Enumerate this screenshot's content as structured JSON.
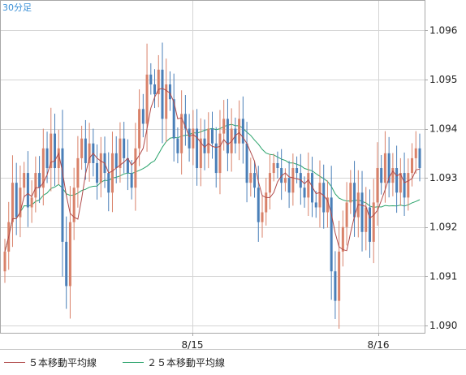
{
  "chart_data": {
    "type": "candlestick",
    "timeframe_label": "30分足",
    "x_tick_labels": [
      "8/15",
      "8/16"
    ],
    "y_ticks": [
      1.09,
      1.091,
      1.092,
      1.093,
      1.094,
      1.095,
      1.096
    ],
    "y_tick_labels": [
      "1.090",
      "1.091",
      "1.092",
      "1.093",
      "1.094",
      "1.095",
      "1.096"
    ],
    "ylim": [
      1.08985,
      1.0966
    ],
    "grid": true,
    "legend": {
      "placement": "bottom-left",
      "items": [
        {
          "label": "５本移動平均線",
          "color": "#b04a4a"
        },
        {
          "label": "２５本移動平均線",
          "color": "#2aa36b"
        }
      ]
    },
    "colors": {
      "up": "#d9826a",
      "down": "#4a7fb8",
      "ma5": "#b04a4a",
      "ma25": "#2aa36b",
      "timeframe": "#3a8fd6"
    },
    "closes": [
      1.0915,
      1.0921,
      1.0929,
      1.0922,
      1.0928,
      1.0931,
      1.0924,
      1.0926,
      1.0931,
      1.0928,
      1.0936,
      1.0932,
      1.0939,
      1.0932,
      1.0936,
      1.0917,
      1.0908,
      1.0921,
      1.0928,
      1.0934,
      1.0938,
      1.0933,
      1.0937,
      1.0933,
      1.0929,
      1.0935,
      1.0931,
      1.0927,
      1.0935,
      1.0932,
      1.0938,
      1.0934,
      1.0931,
      1.0928,
      1.0936,
      1.0944,
      1.0941,
      1.0951,
      1.0949,
      1.0947,
      1.0952,
      1.0942,
      1.0949,
      1.0946,
      1.0938,
      1.0935,
      1.0943,
      1.094,
      1.0936,
      1.094,
      1.0932,
      1.0938,
      1.0935,
      1.094,
      1.0937,
      1.0931,
      1.0939,
      1.0942,
      1.0935,
      1.094,
      1.0937,
      1.0942,
      1.0937,
      1.0929,
      1.0931,
      1.0928,
      1.0921,
      1.0923,
      1.0927,
      1.0931,
      1.0933,
      1.0932,
      1.0929,
      1.093,
      1.0927,
      1.0932,
      1.0931,
      1.0928,
      1.0926,
      1.0931,
      1.0925,
      1.0924,
      1.0929,
      1.0923,
      1.0926,
      1.0911,
      1.0905,
      1.0915,
      1.092,
      1.0925,
      1.0929,
      1.0922,
      1.0927,
      1.0919,
      1.0924,
      1.0917,
      1.0925,
      1.0932,
      1.0929,
      1.0935,
      1.0929,
      1.0932,
      1.0927,
      1.0931,
      1.0926,
      1.0931,
      1.0934,
      1.0936,
      1.0932
    ]
  }
}
